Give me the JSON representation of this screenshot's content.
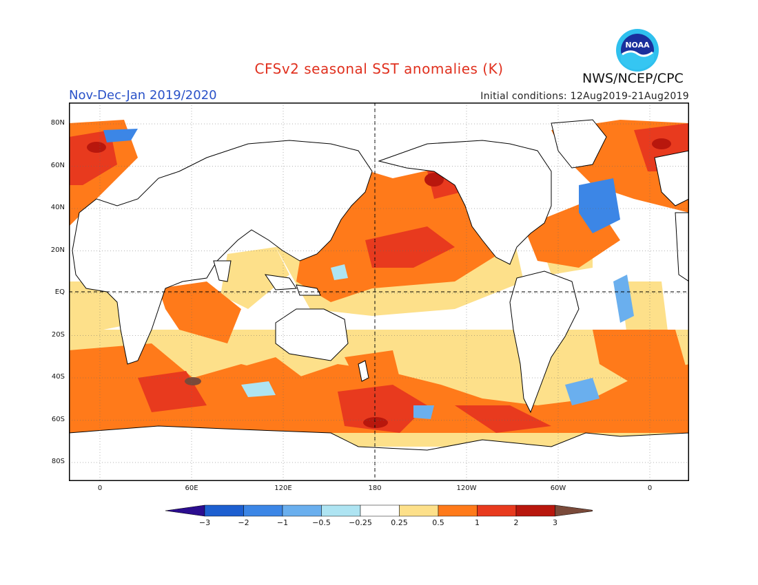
{
  "header": {
    "title": "CFSv2 seasonal SST anomalies (K)",
    "organization": "NWS/NCEP/CPC",
    "period": "Nov-Dec-Jan 2019/2020",
    "initial_conditions": "Initial conditions: 12Aug2019-21Aug2019",
    "logo_text": "NOAA"
  },
  "map": {
    "lat_labels": [
      "80N",
      "60N",
      "40N",
      "20N",
      "EQ",
      "20S",
      "40S",
      "60S",
      "80S"
    ],
    "lon_labels": [
      "0",
      "60E",
      "120E",
      "180",
      "120W",
      "60W",
      "0"
    ],
    "colors": {
      "land": "#ffffff",
      "coast": "#000000",
      "grid": "#666666"
    }
  },
  "legend": {
    "labels": [
      "−3",
      "−2",
      "−1",
      "−0.5",
      "−0.25",
      "0.25",
      "0.5",
      "1",
      "2",
      "3"
    ],
    "colors": [
      "#2b0d8f",
      "#1d5fd0",
      "#3c86e6",
      "#6aafee",
      "#aee4f2",
      "#ffffff",
      "#fde08a",
      "#ff7a1a",
      "#e83a1e",
      "#b8170d",
      "#7a4a3a"
    ]
  }
}
